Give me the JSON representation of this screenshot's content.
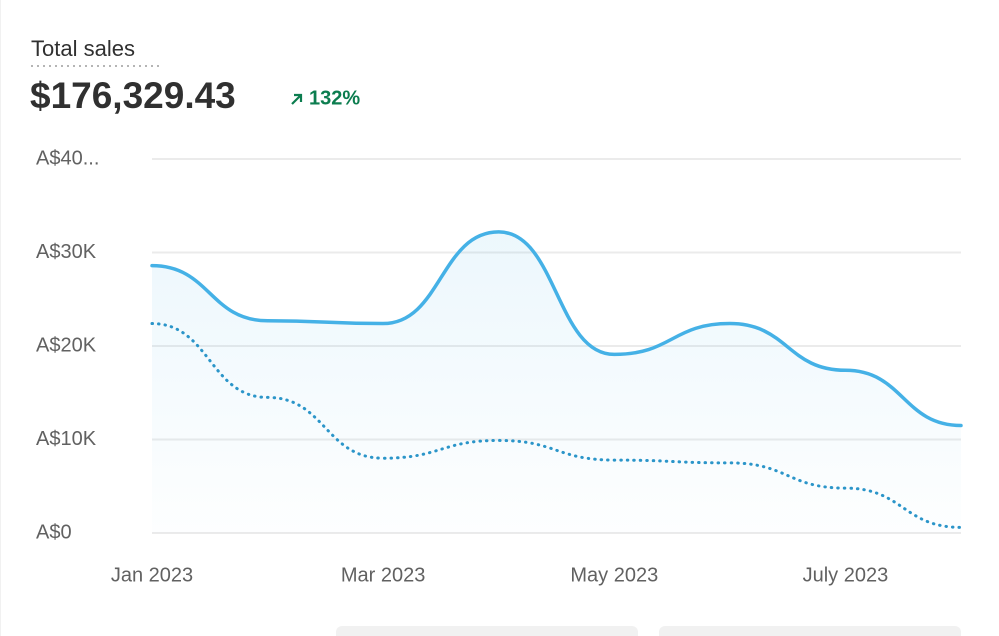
{
  "chart_data": {
    "type": "line",
    "title": "Total sales",
    "total": "$176,329.43",
    "change": "132%",
    "categories": [
      "Jan 2023",
      null,
      "Mar 2023",
      null,
      "May 2023",
      null,
      "July 2023",
      null
    ],
    "series": [
      {
        "color": "#45b1e6",
        "style": "solid",
        "area": true,
        "values": [
          28600,
          22700,
          22400,
          32200,
          19100,
          22400,
          17400,
          11500
        ]
      },
      {
        "color": "#2b95c9",
        "style": "dotted",
        "values": [
          22400,
          14500,
          8000,
          9900,
          7800,
          7500,
          4800,
          600
        ]
      }
    ],
    "ylim": [
      0,
      40000
    ],
    "yticks": [
      {
        "value": 0,
        "label": "A$0"
      },
      {
        "value": 10000,
        "label": "A$10K"
      },
      {
        "value": 20000,
        "label": "A$20K"
      },
      {
        "value": 30000,
        "label": "A$30K"
      },
      {
        "value": 40000,
        "label": "A$40..."
      }
    ],
    "grid": true
  }
}
